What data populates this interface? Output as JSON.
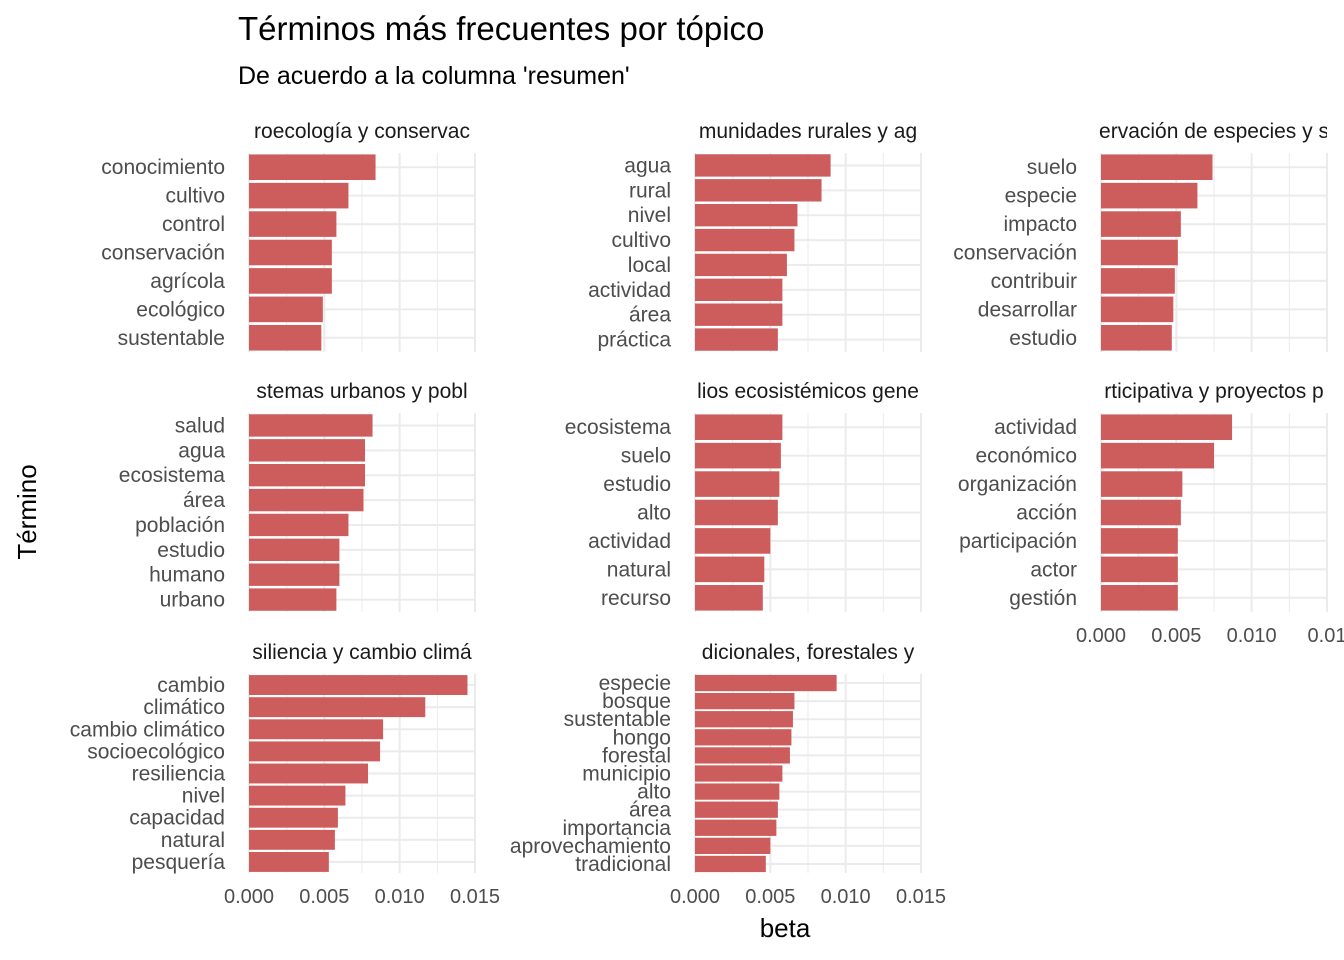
{
  "colors": {
    "bar": "#cd5c5c",
    "grid": "#ebebeb",
    "text": "#4d4d4d"
  },
  "chart_data": {
    "type": "bar",
    "orientation": "horizontal",
    "title": "Términos más frecuentes por tópico",
    "subtitle": "De acuerdo a la columna 'resumen'",
    "xlabel": "beta",
    "ylabel": "Término",
    "xlim": [
      0,
      0.015
    ],
    "xticks": [
      "0.000",
      "0.005",
      "0.010",
      "0.015"
    ],
    "xticks_right_column": [
      "0.000",
      "0.005",
      "0.010",
      "0.01"
    ],
    "grid": true,
    "facets": [
      {
        "strip": "roecología y conservac",
        "categories": [
          "conocimiento",
          "cultivo",
          "control",
          "conservación",
          "agrícola",
          "ecológico",
          "sustentable"
        ],
        "values": [
          0.0084,
          0.0066,
          0.0058,
          0.0055,
          0.0055,
          0.0049,
          0.0048
        ]
      },
      {
        "strip": "munidades rurales y ag",
        "categories": [
          "agua",
          "rural",
          "nivel",
          "cultivo",
          "local",
          "actividad",
          "área",
          "práctica"
        ],
        "values": [
          0.009,
          0.0084,
          0.0068,
          0.0066,
          0.0061,
          0.0058,
          0.0058,
          0.0055
        ]
      },
      {
        "strip": "ervación de especies y s",
        "categories": [
          "suelo",
          "especie",
          "impacto",
          "conservación",
          "contribuir",
          "desarrollar",
          "estudio"
        ],
        "values": [
          0.0074,
          0.0064,
          0.0053,
          0.0051,
          0.0049,
          0.0048,
          0.0047
        ]
      },
      {
        "strip": "stemas urbanos y pobl",
        "categories": [
          "salud",
          "agua",
          "ecosistema",
          "área",
          "población",
          "estudio",
          "humano",
          "urbano"
        ],
        "values": [
          0.0082,
          0.0077,
          0.0077,
          0.0076,
          0.0066,
          0.006,
          0.006,
          0.0058
        ]
      },
      {
        "strip": "lios ecosistémicos gene",
        "categories": [
          "ecosistema",
          "suelo",
          "estudio",
          "alto",
          "actividad",
          "natural",
          "recurso"
        ],
        "values": [
          0.0058,
          0.0057,
          0.0056,
          0.0055,
          0.005,
          0.0046,
          0.0045
        ]
      },
      {
        "strip": "rticipativa y proyectos p",
        "categories": [
          "actividad",
          "económico",
          "organización",
          "acción",
          "participación",
          "actor",
          "gestión"
        ],
        "values": [
          0.0087,
          0.0075,
          0.0054,
          0.0053,
          0.0051,
          0.0051,
          0.0051
        ]
      },
      {
        "strip": "siliencia y cambio climá",
        "categories": [
          "cambio",
          "climático",
          "cambio climático",
          "socioecológico",
          "resiliencia",
          "nivel",
          "capacidad",
          "natural",
          "pesquería"
        ],
        "values": [
          0.0145,
          0.0117,
          0.0089,
          0.0087,
          0.0079,
          0.0064,
          0.0059,
          0.0057,
          0.0053
        ]
      },
      {
        "strip": "dicionales, forestales y",
        "categories": [
          "especie",
          "bosque",
          "sustentable",
          "hongo",
          "forestal",
          "municipio",
          "alto",
          "área",
          "importancia",
          "aprovechamiento",
          "tradicional"
        ],
        "values": [
          0.0094,
          0.0066,
          0.0065,
          0.0064,
          0.0063,
          0.0058,
          0.0056,
          0.0055,
          0.0054,
          0.005,
          0.0047
        ]
      }
    ]
  }
}
